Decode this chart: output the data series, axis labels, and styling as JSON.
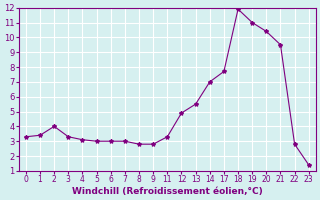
{
  "x": [
    0,
    1,
    2,
    3,
    4,
    5,
    6,
    7,
    8,
    9,
    11,
    12,
    13,
    14,
    17,
    18,
    19,
    20,
    21,
    22,
    23
  ],
  "y": [
    3.3,
    3.4,
    4.0,
    3.3,
    3.1,
    3.0,
    3.0,
    3.0,
    2.8,
    2.8,
    3.3,
    4.9,
    5.5,
    7.0,
    7.7,
    11.9,
    11.0,
    10.4,
    9.5,
    2.8,
    1.4
  ],
  "ylim": [
    1,
    12
  ],
  "yticks": [
    1,
    2,
    3,
    4,
    5,
    6,
    7,
    8,
    9,
    10,
    11,
    12
  ],
  "line_color": "#800080",
  "marker": "*",
  "marker_size": 3,
  "bg_color": "#d6f0f0",
  "xlabel": "Windchill (Refroidissement éolien,°C)",
  "grid_color": "#ffffff"
}
